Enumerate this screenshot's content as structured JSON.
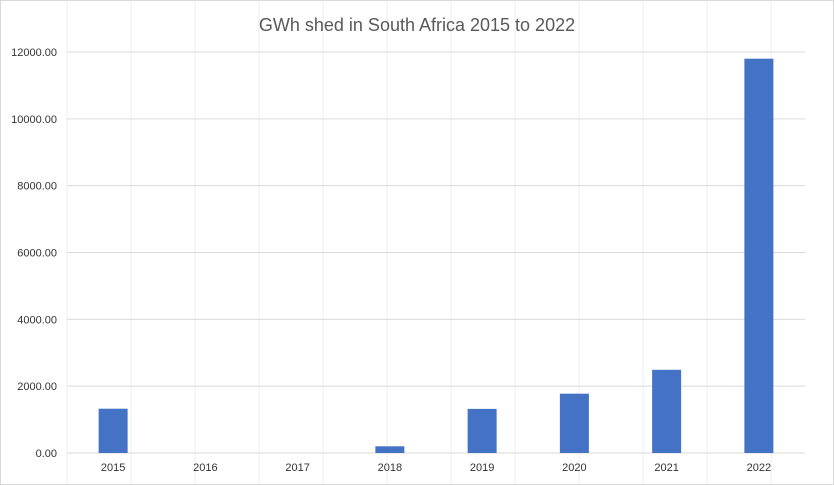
{
  "chart_data": {
    "type": "bar",
    "title": "GWh shed in South Africa 2015 to 2022",
    "xlabel": "",
    "ylabel": "",
    "categories": [
      "2015",
      "2016",
      "2017",
      "2018",
      "2019",
      "2020",
      "2021",
      "2022"
    ],
    "series": [
      {
        "values": [
          1325,
          0,
          0,
          200,
          1320,
          1775,
          2490,
          11800
        ]
      }
    ],
    "ylim": [
      0,
      12000
    ],
    "yticks": [
      "0.00",
      "2000.00",
      "4000.00",
      "6000.00",
      "8000.00",
      "10000.00",
      "12000.00"
    ],
    "grid": true,
    "legend": "none",
    "bar_color": "#4472c4"
  }
}
